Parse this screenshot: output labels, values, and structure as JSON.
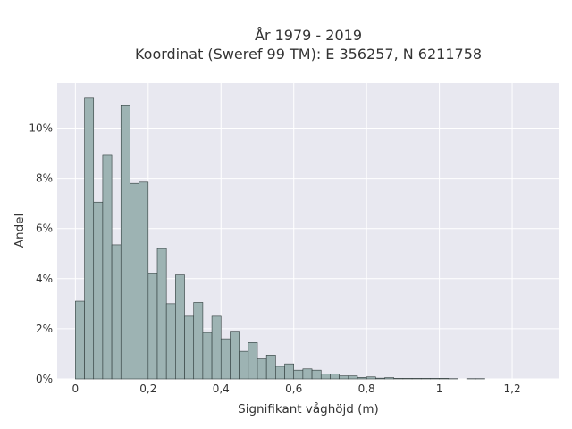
{
  "chart_data": {
    "type": "bar",
    "title_lines": [
      "År 1979 - 2019",
      "Koordinat (Sweref 99 TM): E 356257, N 6211758"
    ],
    "xlabel": "Signifikant våghöjd (m)",
    "ylabel": "Andel",
    "xlim": [
      -0.05,
      1.33
    ],
    "ylim": [
      0,
      11.8
    ],
    "bin_width": 0.025,
    "bin_start": 0.0,
    "values": [
      3.1,
      11.2,
      7.05,
      8.95,
      5.35,
      10.9,
      7.8,
      7.85,
      4.2,
      5.2,
      3.0,
      4.15,
      2.5,
      3.05,
      1.85,
      2.5,
      1.6,
      1.9,
      1.1,
      1.45,
      0.8,
      0.95,
      0.5,
      0.6,
      0.35,
      0.4,
      0.35,
      0.2,
      0.2,
      0.12,
      0.12,
      0.06,
      0.08,
      0.03,
      0.05,
      0.02,
      0.02,
      0.02,
      0.02,
      0.02,
      0.02,
      0.01,
      0.0,
      0.01,
      0.01
    ],
    "x_ticks": [
      {
        "value": 0,
        "label": "0"
      },
      {
        "value": 0.2,
        "label": "0,2"
      },
      {
        "value": 0.4,
        "label": "0,4"
      },
      {
        "value": 0.6,
        "label": "0,6"
      },
      {
        "value": 0.8,
        "label": "0,8"
      },
      {
        "value": 1.0,
        "label": "1"
      },
      {
        "value": 1.2,
        "label": "1,2"
      }
    ],
    "y_ticks": [
      {
        "value": 0,
        "label": "0%"
      },
      {
        "value": 2,
        "label": "2%"
      },
      {
        "value": 4,
        "label": "4%"
      },
      {
        "value": 6,
        "label": "6%"
      },
      {
        "value": 8,
        "label": "8%"
      },
      {
        "value": 10,
        "label": "10%"
      }
    ],
    "grid": true,
    "legend": false,
    "colors": {
      "plot_background": "#e8e8f0",
      "grid": "#ffffff",
      "bar_fill": "#9db3b3",
      "bar_stroke": "#2f3b3b",
      "text": "#333333"
    }
  }
}
